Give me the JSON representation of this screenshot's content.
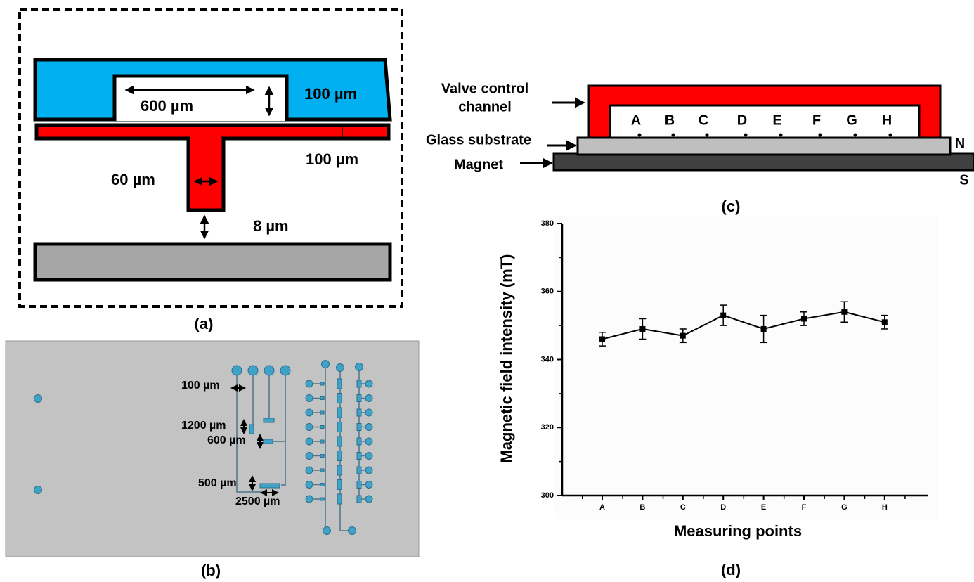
{
  "panel_a": {
    "label": "(a)",
    "width_top": "600 µm",
    "height_top": "100 µm",
    "height_red": "100 µm",
    "width_stem": "60 µm",
    "gap": "8 µm"
  },
  "panel_b": {
    "label": "(b)",
    "dims": [
      "100 µm",
      "1200 µm",
      "600 µm",
      "500 µm",
      "2500 µm"
    ]
  },
  "panel_c": {
    "label": "(c)",
    "valve_line1": "Valve control",
    "valve_line2": "channel",
    "glass": "Glass substrate",
    "magnet": "Magnet",
    "north": "N",
    "south": "S",
    "points": [
      "A",
      "B",
      "C",
      "D",
      "E",
      "F",
      "G",
      "H"
    ]
  },
  "chart_data": {
    "type": "line",
    "label": "(d)",
    "x_label": "Measuring points",
    "y_label": "Magnetic field intensity (mT)",
    "categories": [
      "A",
      "B",
      "C",
      "D",
      "E",
      "F",
      "G",
      "H"
    ],
    "values": [
      346,
      349,
      347,
      353,
      349,
      352,
      354,
      351
    ],
    "errors": [
      2,
      3,
      2,
      3,
      4,
      2,
      3,
      2
    ],
    "color": "#000000",
    "ylim": [
      300,
      380
    ],
    "yticks": [
      300,
      320,
      340,
      360,
      380
    ]
  }
}
